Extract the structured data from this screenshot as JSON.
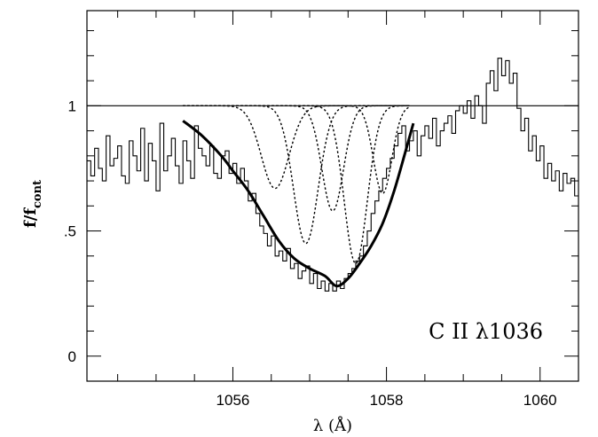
{
  "chart_data": {
    "type": "line",
    "xlabel": "λ (Å)",
    "ylabel_main": "f/f",
    "ylabel_sub": "cont",
    "annotation": "C II λ1036",
    "xlim": [
      1054.1,
      1060.5
    ],
    "ylim": [
      -0.1,
      1.38
    ],
    "x_ticks_major": [
      1056,
      1058,
      1060
    ],
    "x_tick_labels": [
      "1056",
      "1058",
      "1060"
    ],
    "y_ticks_major": [
      0,
      0.5,
      1
    ],
    "y_tick_labels": [
      "0",
      ".5",
      "1"
    ],
    "continuum": 1.0,
    "grid": false,
    "series": [
      {
        "style": "histogram",
        "x": [
          1054.1,
          1054.15,
          1054.2,
          1054.25,
          1054.3,
          1054.35,
          1054.4,
          1054.45,
          1054.5,
          1054.55,
          1054.6,
          1054.65,
          1054.7,
          1054.75,
          1054.8,
          1054.85,
          1054.9,
          1054.95,
          1055.0,
          1055.05,
          1055.1,
          1055.15,
          1055.2,
          1055.25,
          1055.3,
          1055.35,
          1055.4,
          1055.45,
          1055.5,
          1055.55,
          1055.6,
          1055.65,
          1055.7,
          1055.75,
          1055.8,
          1055.85,
          1055.9,
          1055.95,
          1056.0,
          1056.05,
          1056.1,
          1056.15,
          1056.2,
          1056.25,
          1056.3,
          1056.35,
          1056.4,
          1056.45,
          1056.5,
          1056.55,
          1056.6,
          1056.65,
          1056.7,
          1056.75,
          1056.8,
          1056.85,
          1056.9,
          1056.95,
          1057.0,
          1057.05,
          1057.1,
          1057.15,
          1057.2,
          1057.25,
          1057.3,
          1057.35,
          1057.4,
          1057.45,
          1057.5,
          1057.55,
          1057.6,
          1057.65,
          1057.7,
          1057.75,
          1057.8,
          1057.85,
          1057.9,
          1057.95,
          1058.0,
          1058.05,
          1058.1,
          1058.15,
          1058.2,
          1058.25,
          1058.3,
          1058.35,
          1058.4,
          1058.45,
          1058.5,
          1058.55,
          1058.6,
          1058.65,
          1058.7,
          1058.75,
          1058.8,
          1058.85,
          1058.9,
          1058.95,
          1059.0,
          1059.05,
          1059.1,
          1059.15,
          1059.2,
          1059.25,
          1059.3,
          1059.35,
          1059.4,
          1059.45,
          1059.5,
          1059.55,
          1059.6,
          1059.65,
          1059.7,
          1059.75,
          1059.8,
          1059.85,
          1059.9,
          1059.95,
          1060.0,
          1060.05,
          1060.1,
          1060.15,
          1060.2,
          1060.25,
          1060.3,
          1060.35,
          1060.4,
          1060.45
        ],
        "y": [
          0.78,
          0.72,
          0.83,
          0.75,
          0.7,
          0.88,
          0.76,
          0.79,
          0.84,
          0.72,
          0.69,
          0.86,
          0.8,
          0.74,
          0.91,
          0.7,
          0.85,
          0.78,
          0.66,
          0.93,
          0.74,
          0.8,
          0.87,
          0.76,
          0.69,
          0.86,
          0.78,
          0.71,
          0.92,
          0.83,
          0.8,
          0.76,
          0.84,
          0.73,
          0.71,
          0.8,
          0.82,
          0.73,
          0.77,
          0.69,
          0.75,
          0.7,
          0.62,
          0.65,
          0.57,
          0.52,
          0.49,
          0.44,
          0.48,
          0.4,
          0.42,
          0.38,
          0.43,
          0.35,
          0.37,
          0.31,
          0.34,
          0.36,
          0.29,
          0.33,
          0.27,
          0.3,
          0.26,
          0.29,
          0.26,
          0.3,
          0.27,
          0.31,
          0.33,
          0.35,
          0.38,
          0.4,
          0.44,
          0.5,
          0.57,
          0.62,
          0.66,
          0.71,
          0.75,
          0.79,
          0.84,
          0.89,
          0.92,
          0.82,
          0.86,
          0.9,
          0.8,
          0.88,
          0.92,
          0.87,
          0.95,
          0.84,
          0.9,
          0.93,
          0.96,
          0.89,
          0.98,
          1.0,
          0.97,
          1.02,
          0.95,
          1.04,
          1.0,
          0.93,
          1.09,
          1.14,
          1.06,
          1.19,
          1.12,
          1.18,
          1.09,
          1.13,
          0.99,
          0.9,
          0.95,
          0.82,
          0.88,
          0.78,
          0.84,
          0.71,
          0.77,
          0.7,
          0.74,
          0.66,
          0.73,
          0.69,
          0.71,
          0.64
        ]
      },
      {
        "style": "bold-fit",
        "x": [
          1055.35,
          1055.6,
          1055.85,
          1056.0,
          1056.2,
          1056.4,
          1056.6,
          1056.8,
          1057.0,
          1057.2,
          1057.35,
          1057.5,
          1057.65,
          1057.8,
          1057.95,
          1058.1,
          1058.25,
          1058.35
        ],
        "y": [
          0.94,
          0.88,
          0.8,
          0.74,
          0.66,
          0.56,
          0.46,
          0.39,
          0.35,
          0.32,
          0.28,
          0.31,
          0.37,
          0.44,
          0.53,
          0.66,
          0.82,
          0.93
        ]
      },
      {
        "style": "dotted-components",
        "components": [
          {
            "center": 1056.55,
            "depth": 0.33,
            "width": 0.18
          },
          {
            "center": 1056.95,
            "depth": 0.55,
            "width": 0.16
          },
          {
            "center": 1057.3,
            "depth": 0.42,
            "width": 0.14
          },
          {
            "center": 1057.6,
            "depth": 0.63,
            "width": 0.15
          },
          {
            "center": 1057.95,
            "depth": 0.35,
            "width": 0.12
          }
        ],
        "x_range": [
          1055.35,
          1058.3
        ]
      }
    ]
  }
}
